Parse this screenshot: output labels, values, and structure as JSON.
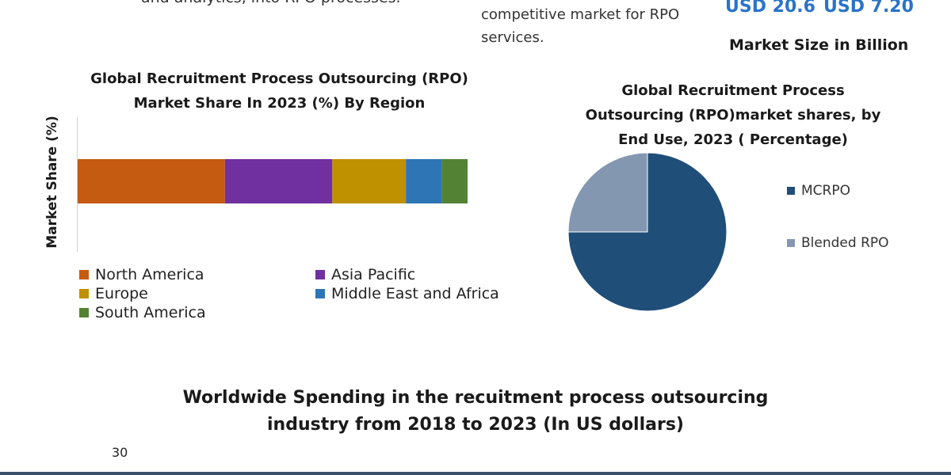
{
  "header": {
    "left_text": "and analytics, into RPO processes.",
    "mid_text": "competitive market for RPO services.",
    "usd_values": [
      "USD 20.6",
      "USD 7.20"
    ],
    "market_size_label": "Market Size in Billion"
  },
  "colors": {
    "usd_accent": "#2a73c9",
    "north_america": "#c55a11",
    "asia_pacific": "#7030a0",
    "europe": "#bf9000",
    "middle_east_africa": "#2e75b6",
    "south_america": "#548235",
    "mcrpo": "#1f4e79",
    "blended_rpo": "#8497b0"
  },
  "chart_data": [
    {
      "type": "bar",
      "orientation": "horizontal-stacked",
      "title": "Global Recruitment Process Outsourcing (RPO) Market Share In 2023 (%) By Region",
      "ylabel": "Market Share (%)",
      "xlabel": "",
      "legend_position": "bottom",
      "series": [
        {
          "name": "North America",
          "value": 37,
          "color": "#c55a11"
        },
        {
          "name": "Asia Pacific",
          "value": 27,
          "color": "#7030a0"
        },
        {
          "name": "Europe",
          "value": 18.5,
          "color": "#bf9000"
        },
        {
          "name": "Middle East and Africa",
          "value": 9,
          "color": "#2e75b6"
        },
        {
          "name": "South America",
          "value": 6.5,
          "color": "#548235"
        }
      ]
    },
    {
      "type": "pie",
      "title": "Global Recruitment Process Outsourcing (RPO)market shares, by End Use, 2023 ( Percentage)",
      "legend_position": "right",
      "slices": [
        {
          "name": "MCRPO",
          "value": 75,
          "color": "#1f4e79"
        },
        {
          "name": "Blended RPO",
          "value": 25,
          "color": "#8497b0"
        }
      ]
    }
  ],
  "bottom": {
    "title": "Worldwide Spending in the recuitment process outsourcing industry from 2018 to 2023 (In US dollars)",
    "axis_tick": "30"
  }
}
